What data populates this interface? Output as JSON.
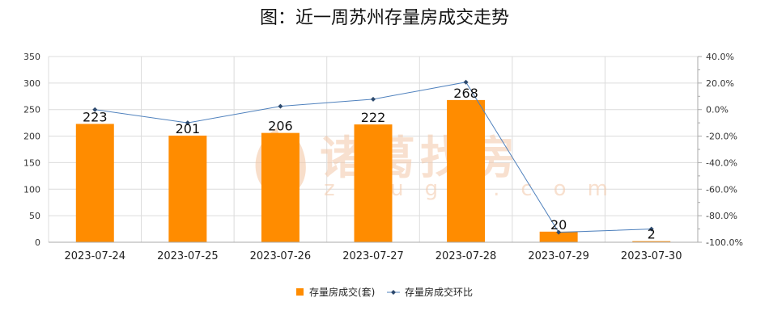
{
  "chart_data": {
    "type": "bar",
    "title": "图：近一周苏州存量房成交走势",
    "categories": [
      "2023-07-24",
      "2023-07-25",
      "2023-07-26",
      "2023-07-27",
      "2023-07-28",
      "2023-07-29",
      "2023-07-30"
    ],
    "series": [
      {
        "name": "存量房成交(套)",
        "type": "bar",
        "axis": "left",
        "values": [
          223,
          201,
          206,
          222,
          268,
          20,
          2
        ],
        "color": "#ff8c00"
      },
      {
        "name": "存量房成交环比",
        "type": "line",
        "axis": "right",
        "values": [
          0.0,
          -10.0,
          2.5,
          7.8,
          20.7,
          -92.5,
          -90.0
        ],
        "color": "#4f81bd"
      }
    ],
    "y_left": {
      "min": 0,
      "max": 350,
      "ticks": [
        0,
        50,
        100,
        150,
        200,
        250,
        300,
        350
      ]
    },
    "y_right": {
      "min": -100,
      "max": 40,
      "ticks": [
        "-100.0%",
        "-80.0%",
        "-60.0%",
        "-40.0%",
        "-20.0%",
        "0.0%",
        "20.0%",
        "40.0%"
      ]
    },
    "grid": true,
    "legend_position": "bottom"
  },
  "watermark": {
    "main": "诸葛找房",
    "sub": "zhuge.com"
  },
  "colors": {
    "bar": "#ff8c00",
    "line": "#4f81bd",
    "grid": "#dcdcdc",
    "axis": "#aaaaaa"
  }
}
